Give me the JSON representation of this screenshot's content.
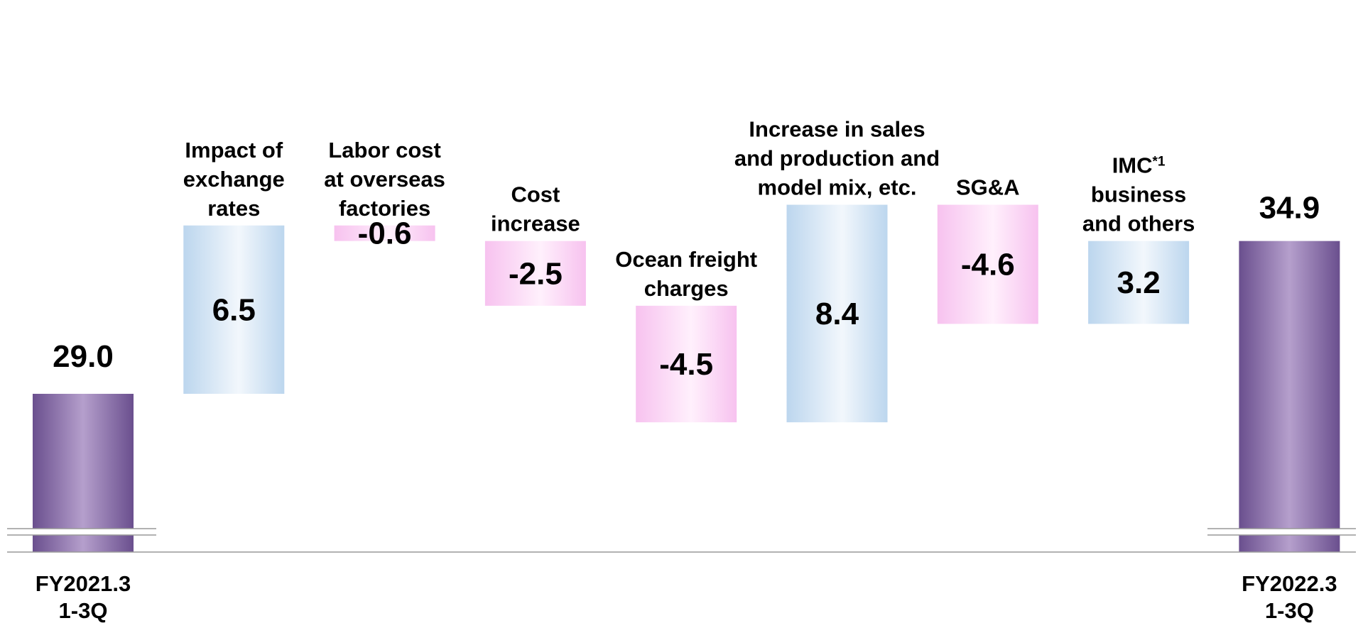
{
  "chart_data": {
    "type": "waterfall",
    "title": "",
    "xlabel": "",
    "ylabel": "",
    "axis_break": true,
    "start": {
      "label_lines": [
        "FY2021.3",
        "1-3Q"
      ],
      "value": 29.0,
      "value_text": "29.0"
    },
    "end": {
      "label_lines": [
        "FY2022.3",
        "1-3Q"
      ],
      "value": 34.9,
      "value_text": "34.9"
    },
    "steps": [
      {
        "label_lines": [
          "Impact of",
          "exchange",
          "rates"
        ],
        "value": 6.5,
        "value_text": "6.5"
      },
      {
        "label_lines": [
          "Labor cost",
          "at overseas",
          "factories"
        ],
        "value": -0.6,
        "value_text": "-0.6"
      },
      {
        "label_lines": [
          "Cost",
          "increase"
        ],
        "value": -2.5,
        "value_text": "-2.5"
      },
      {
        "label_lines": [
          "Ocean freight",
          "charges"
        ],
        "value": -4.5,
        "value_text": "-4.5"
      },
      {
        "label_lines": [
          "Increase in sales",
          "and production and",
          "model mix, etc."
        ],
        "value": 8.4,
        "value_text": "8.4"
      },
      {
        "label_lines": [
          "SG&A"
        ],
        "value": -4.6,
        "value_text": "-4.6"
      },
      {
        "label_lines": [
          "IMC",
          "business",
          "and others"
        ],
        "label_superscript": "*1",
        "value": 3.2,
        "value_text": "3.2"
      }
    ],
    "colors": {
      "total_dark": "#6a4f8e",
      "total_light": "#b59fcc",
      "increase_edge": "#bcd6ee",
      "increase_center": "#f2f7fc",
      "decrease_edge": "#f7c2ef",
      "decrease_center": "#fff0fc",
      "baseline": "#999999"
    }
  }
}
